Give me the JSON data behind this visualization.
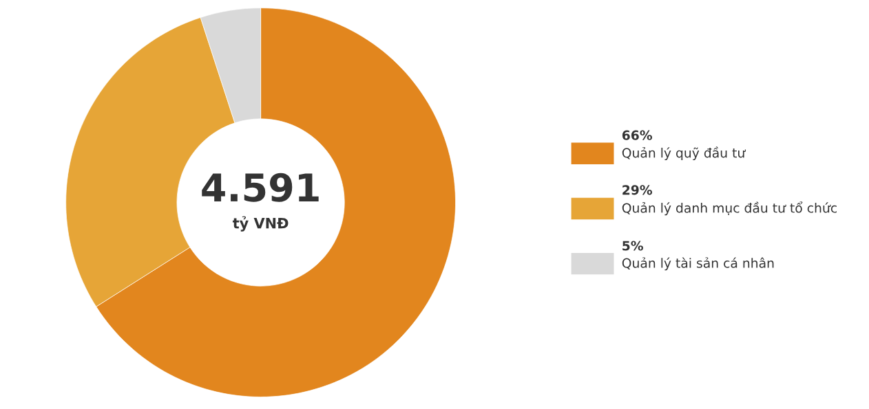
{
  "chart_data": {
    "type": "donut",
    "categories": [
      "Quản lý quỹ đầu tư",
      "Quản lý danh mục đầu tư tổ chức",
      "Quản lý tài sản cá nhân"
    ],
    "values": [
      66,
      29,
      5
    ],
    "colors": [
      "#e2861e",
      "#e6a537",
      "#d9d9d9"
    ],
    "value_labels": [
      "66%",
      "29%",
      "5%"
    ],
    "annotations": [
      "4.591",
      "tỷ VNĐ"
    ],
    "legend": "right"
  }
}
